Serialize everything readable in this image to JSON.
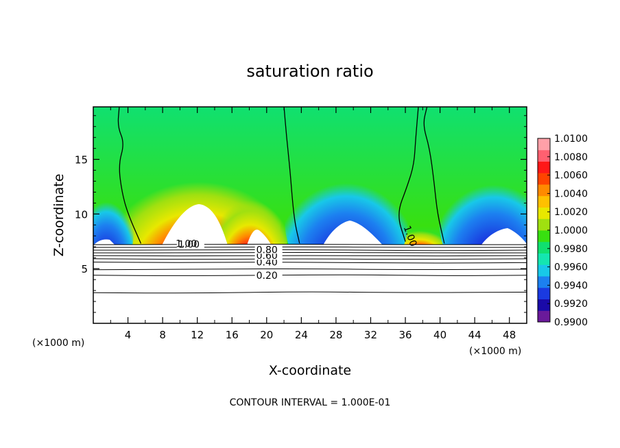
{
  "chart_data": {
    "type": "heatmap",
    "title": "saturation ratio",
    "xlabel": "X-coordinate",
    "ylabel": "Z-coordinate",
    "x_unit_left": "(×1000 m)",
    "x_unit_right": "(×1000 m)",
    "footer": "CONTOUR INTERVAL = 1.000E-01",
    "xlim": [
      0,
      50
    ],
    "ylim": [
      0,
      19.8
    ],
    "x_ticks": [
      4,
      8,
      12,
      16,
      20,
      24,
      28,
      32,
      36,
      40,
      44,
      48
    ],
    "x_tick_labels": [
      "4",
      "8",
      "12",
      "16",
      "20",
      "24",
      "28",
      "32",
      "36",
      "40",
      "44",
      "48"
    ],
    "y_ticks": [
      5,
      10,
      15
    ],
    "y_tick_labels": [
      "5",
      "10",
      "15"
    ],
    "colorbar": {
      "min": 0.99,
      "max": 1.01,
      "tick_values": [
        0.99,
        0.992,
        0.994,
        0.996,
        0.998,
        1.0,
        1.002,
        1.004,
        1.006,
        1.008,
        1.01
      ],
      "tick_labels": [
        "0.9900",
        "0.9920",
        "0.9940",
        "0.9960",
        "0.9980",
        "1.0000",
        "1.0020",
        "1.0040",
        "1.0060",
        "1.0080",
        "1.0100"
      ],
      "colors": [
        "#6a1a9a",
        "#1a0aa8",
        "#1a3ae0",
        "#1c80f0",
        "#18c8e8",
        "#14e6b0",
        "#10e070",
        "#38e010",
        "#a0e010",
        "#e8e800",
        "#ffc000",
        "#ff8a00",
        "#ff4400",
        "#ff1818",
        "#ff6070",
        "#ffa0a8"
      ]
    },
    "contours": [
      {
        "label": "0.20",
        "points": [
          [
            0,
            4.4
          ],
          [
            10,
            4.35
          ],
          [
            20,
            4.4
          ],
          [
            30,
            4.45
          ],
          [
            40,
            4.35
          ],
          [
            50,
            4.4
          ]
        ]
      },
      {
        "label": "0.40",
        "points": [
          [
            0,
            5.6
          ],
          [
            10,
            5.55
          ],
          [
            20,
            5.6
          ],
          [
            30,
            5.55
          ],
          [
            40,
            5.5
          ],
          [
            50,
            5.55
          ]
        ]
      },
      {
        "label": "0.60",
        "points": [
          [
            0,
            6.2
          ],
          [
            10,
            6.15
          ],
          [
            20,
            6.2
          ],
          [
            30,
            6.2
          ],
          [
            40,
            6.15
          ],
          [
            50,
            6.2
          ]
        ]
      },
      {
        "label": "0.80",
        "points": [
          [
            0,
            6.7
          ],
          [
            10,
            6.7
          ],
          [
            20,
            6.75
          ],
          [
            30,
            6.7
          ],
          [
            40,
            6.65
          ],
          [
            50,
            6.7
          ]
        ]
      },
      {
        "label": "1.00",
        "points": [
          [
            0,
            7.2
          ],
          [
            10,
            7.2
          ],
          [
            20,
            7.25
          ],
          [
            30,
            7.2
          ],
          [
            40,
            7.2
          ],
          [
            50,
            7.2
          ]
        ]
      }
    ],
    "extra_contours": [
      {
        "label": "",
        "points": [
          [
            0,
            2.8
          ],
          [
            12,
            2.75
          ],
          [
            24,
            2.9
          ],
          [
            36,
            2.8
          ],
          [
            50,
            2.85
          ]
        ]
      },
      {
        "label": "",
        "points": [
          [
            0,
            4.9
          ],
          [
            12,
            4.95
          ],
          [
            24,
            5.0
          ],
          [
            36,
            4.9
          ],
          [
            50,
            4.95
          ]
        ]
      },
      {
        "label": "",
        "points": [
          [
            0,
            5.9
          ],
          [
            12,
            5.85
          ],
          [
            24,
            5.9
          ],
          [
            36,
            5.85
          ],
          [
            50,
            5.9
          ]
        ]
      },
      {
        "label": "",
        "points": [
          [
            0,
            6.45
          ],
          [
            12,
            6.45
          ],
          [
            24,
            6.5
          ],
          [
            36,
            6.45
          ],
          [
            50,
            6.45
          ]
        ]
      },
      {
        "label": "",
        "points": [
          [
            0,
            6.95
          ],
          [
            12,
            6.95
          ],
          [
            24,
            7.0
          ],
          [
            36,
            6.95
          ],
          [
            50,
            6.95
          ]
        ]
      }
    ],
    "vertical_contours": [
      {
        "label": "",
        "points": [
          [
            3.0,
            19.8
          ],
          [
            2.8,
            18
          ],
          [
            3.6,
            16.5
          ],
          [
            2.9,
            14.5
          ],
          [
            3.3,
            12
          ],
          [
            4.0,
            10
          ],
          [
            5.5,
            7.3
          ]
        ]
      },
      {
        "label": "",
        "points": [
          [
            22.0,
            19.8
          ],
          [
            22.3,
            17
          ],
          [
            22.7,
            14
          ],
          [
            23.0,
            11
          ],
          [
            23.3,
            9
          ],
          [
            23.8,
            7.3
          ]
        ]
      },
      {
        "label": "",
        "points": [
          [
            37.5,
            19.8
          ],
          [
            37.2,
            17
          ],
          [
            37.0,
            14.5
          ],
          [
            36.2,
            12.5
          ],
          [
            35.0,
            10
          ],
          [
            36.0,
            7.5
          ]
        ]
      },
      {
        "label": "",
        "points": [
          [
            38.5,
            19.8
          ],
          [
            38.0,
            18.2
          ],
          [
            38.8,
            16
          ],
          [
            39.3,
            13
          ],
          [
            39.7,
            10
          ],
          [
            40.5,
            7.3
          ]
        ]
      }
    ],
    "inline_labels": [
      {
        "text": "1.00",
        "x": 9.5,
        "y": 7.0
      },
      {
        "text": "1.00",
        "x": 35.8,
        "y": 8.8
      }
    ]
  }
}
